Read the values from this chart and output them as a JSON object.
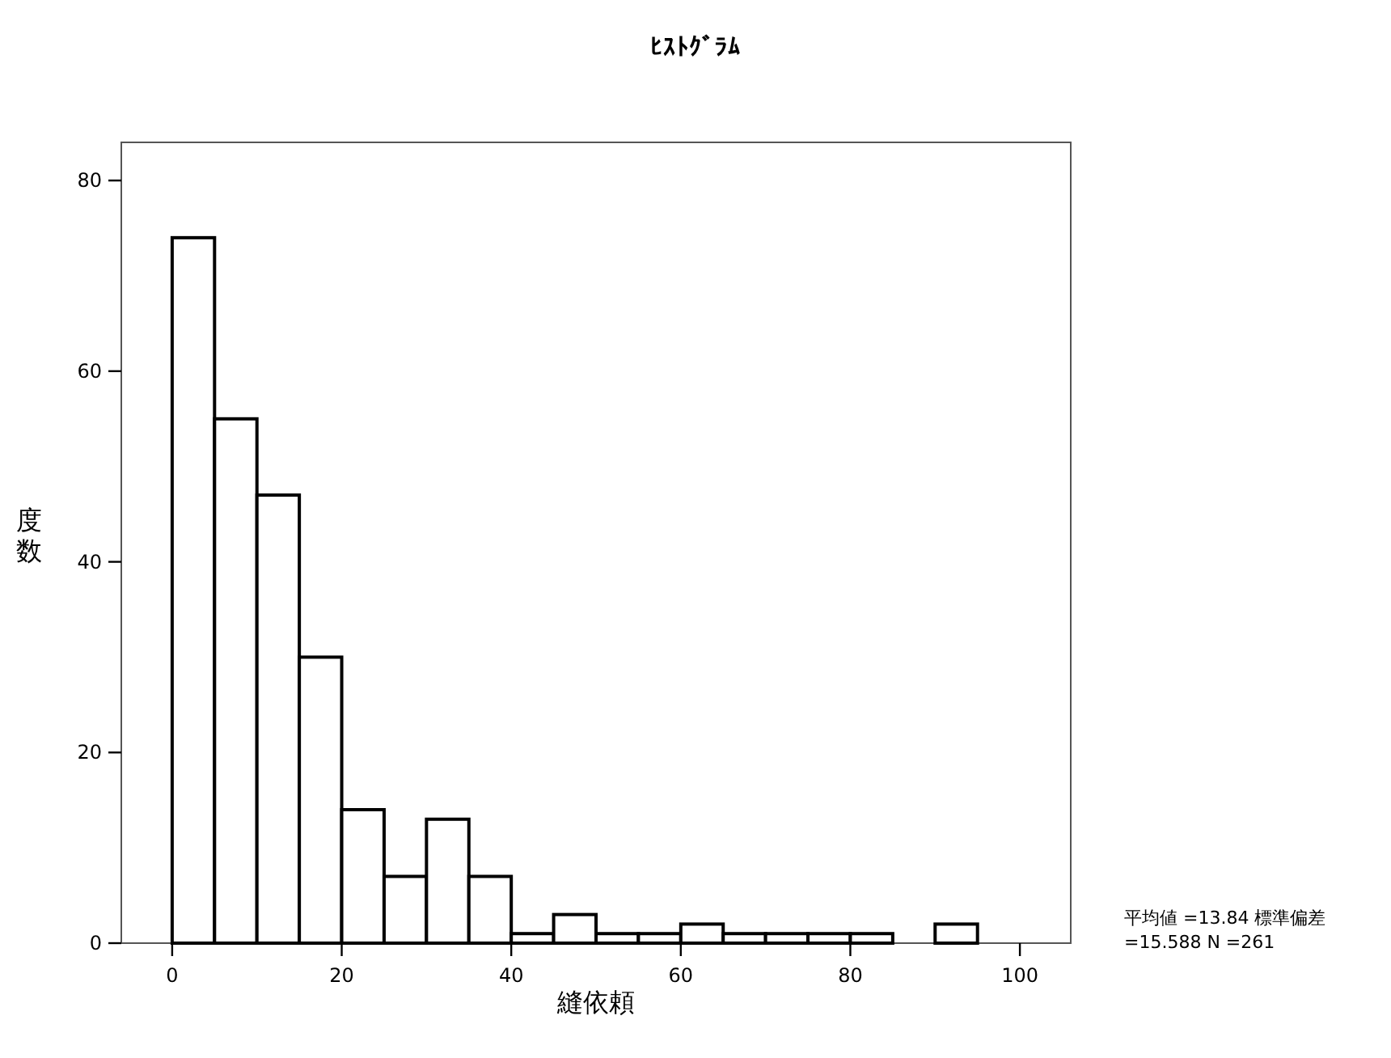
{
  "chart_data": {
    "type": "histogram",
    "title": "ﾋｽﾄｸﾞﾗﾑ",
    "xlabel": "縫依頼",
    "ylabel": "度数",
    "annotations": [
      "平均値 =13.84 標準偏差 =15.588 N =261"
    ],
    "bins": [
      0,
      5,
      10,
      15,
      20,
      25,
      30,
      35,
      40,
      45,
      50,
      55,
      60,
      65,
      70,
      75,
      80,
      85,
      90,
      95
    ],
    "values": [
      74,
      55,
      47,
      30,
      14,
      7,
      13,
      7,
      1,
      3,
      1,
      1,
      2,
      1,
      1,
      1,
      1,
      0,
      2
    ],
    "color": "#ffffff",
    "xlim": [
      -6,
      106
    ],
    "ylim": [
      0,
      84
    ],
    "xticks": [
      0,
      20,
      40,
      60,
      80,
      100
    ],
    "yticks": [
      0,
      20,
      40,
      60,
      80
    ]
  }
}
